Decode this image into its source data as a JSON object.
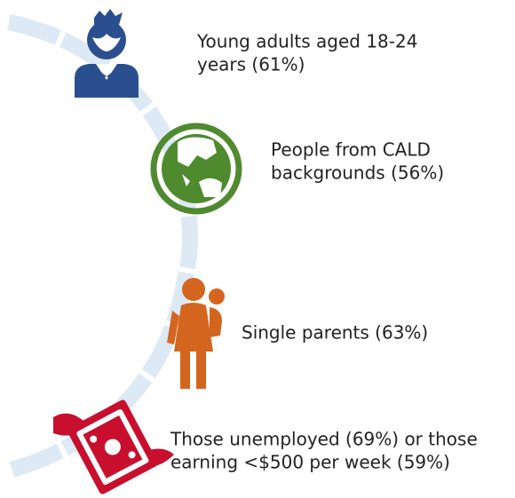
{
  "items": [
    {
      "lines": [
        "Young adults aged 18-24",
        "years (61%)"
      ]
    },
    {
      "lines": [
        "People from CALD",
        "backgrounds (56%)"
      ]
    },
    {
      "lines": [
        "Single parents (63%)"
      ]
    },
    {
      "lines": [
        "Those unemployed (69%) or those",
        "earning <$500 per week (59%)"
      ]
    }
  ]
}
